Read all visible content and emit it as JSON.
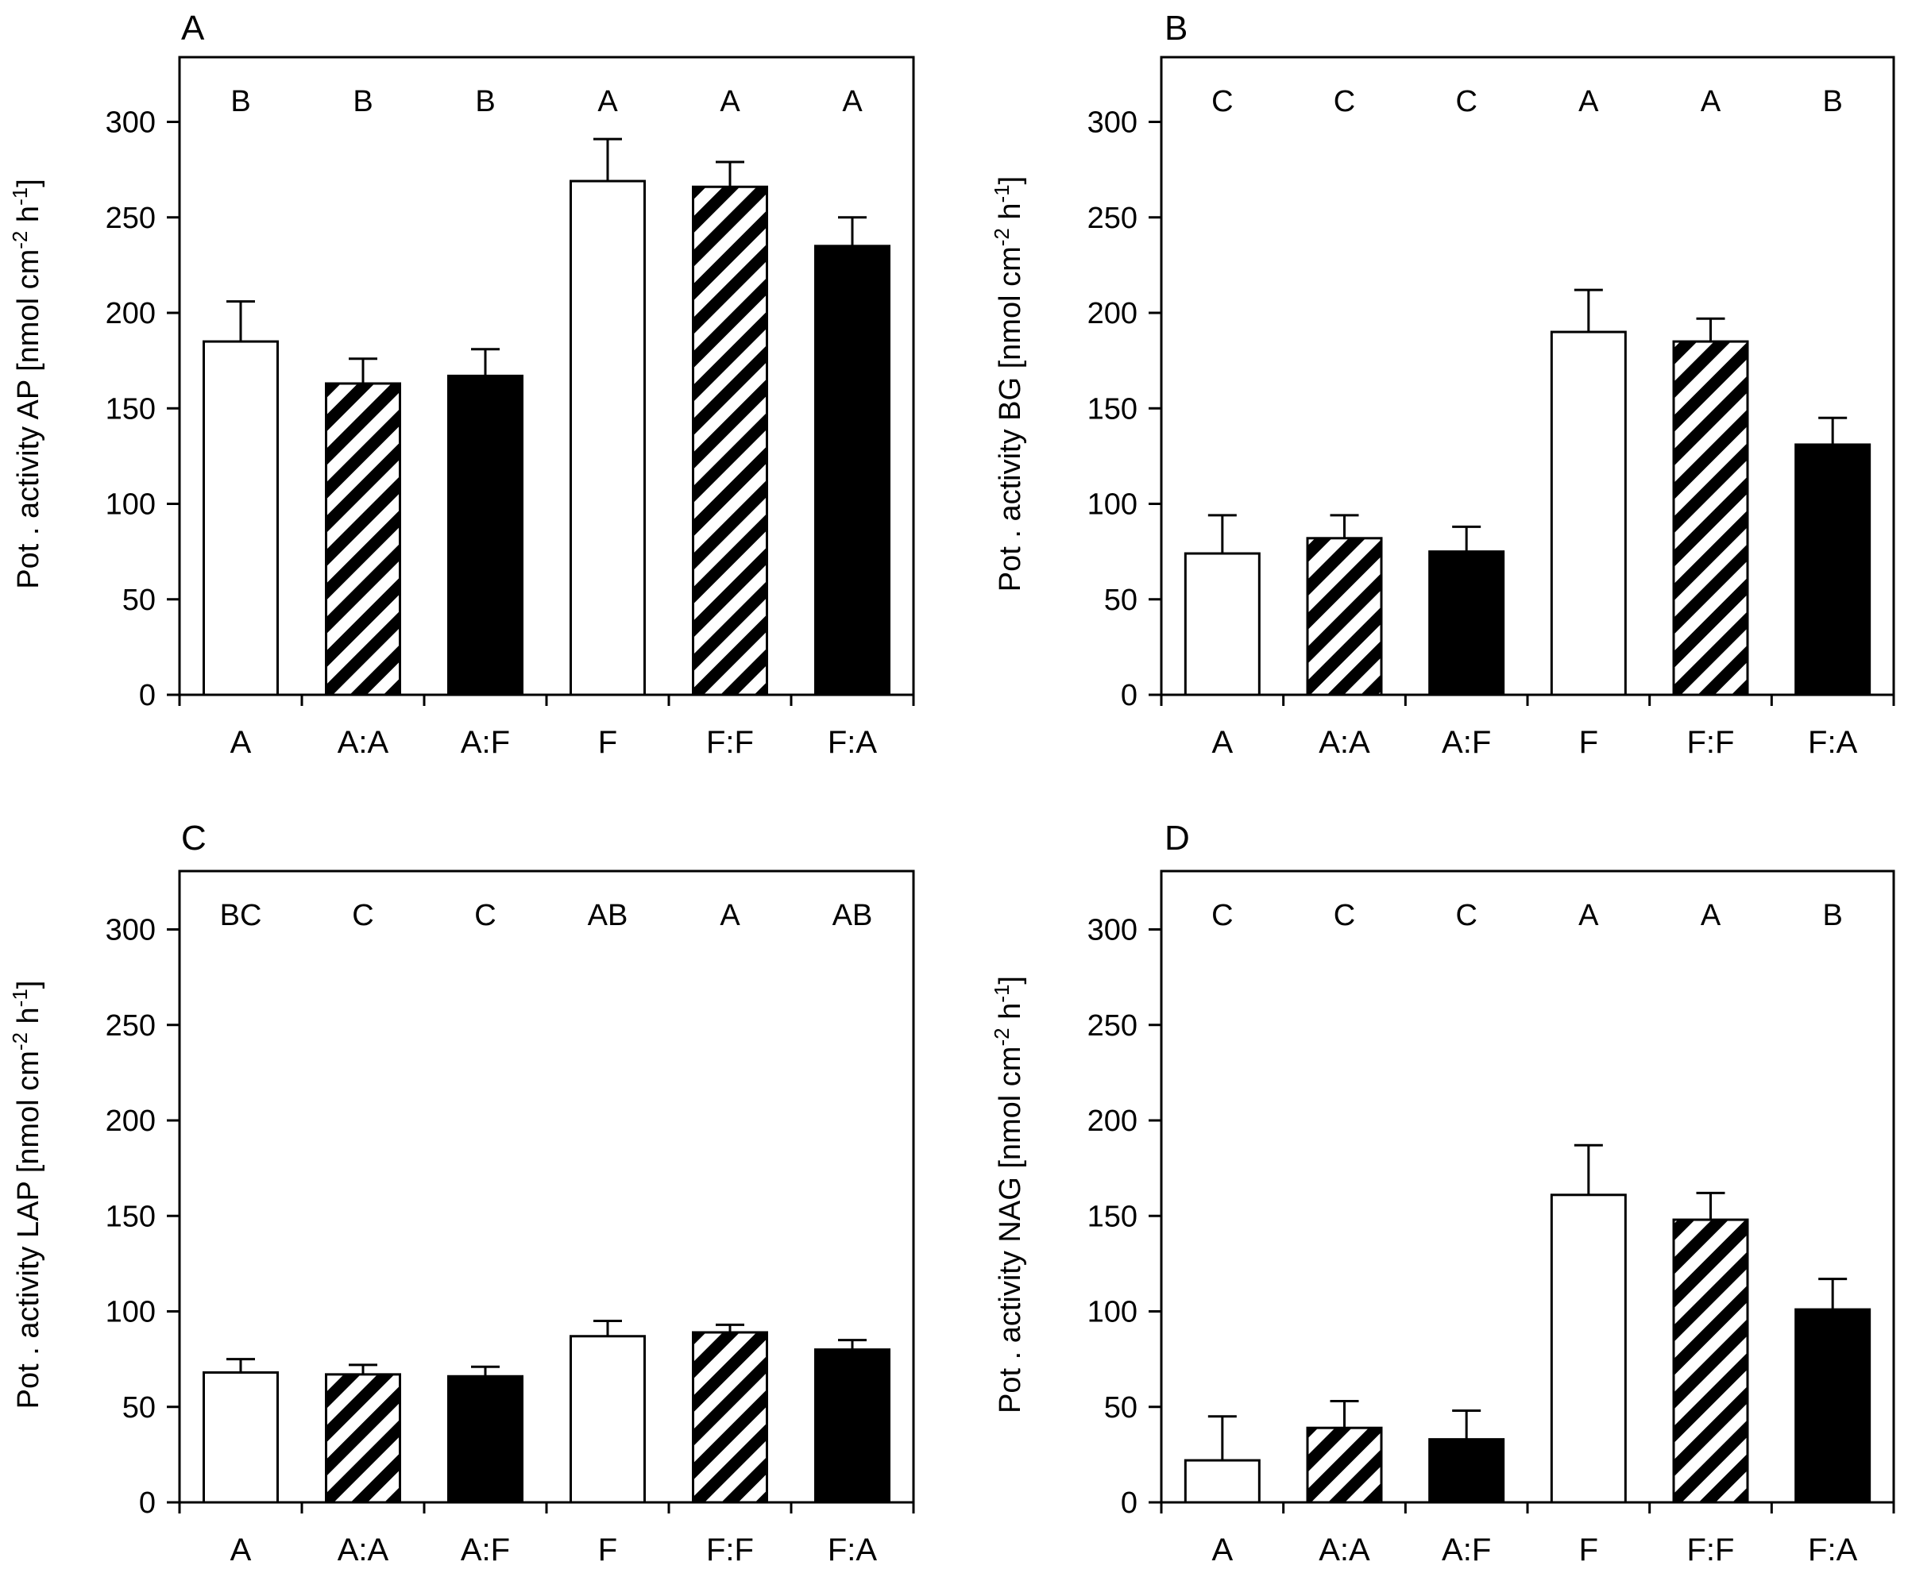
{
  "figure": {
    "background": "#ffffff",
    "bar_colors": {
      "open": "#ffffff",
      "hatched": "#000000",
      "filled": "#000000"
    }
  },
  "chart_data": [
    {
      "panel": "A",
      "type": "bar",
      "title": "A",
      "ylabel": "Pot . activity  AP [nmol cm",
      "ylabel_sup1": "-2",
      "ylabel_mid": " h",
      "ylabel_sup2": "-1",
      "ylabel_end": "]",
      "ylim": [
        0,
        320
      ],
      "yticks": [
        0,
        50,
        100,
        150,
        200,
        250,
        300
      ],
      "categories": [
        "A",
        "A:A",
        "A:F",
        "F",
        "F:F",
        "F:A"
      ],
      "patterns": [
        "open",
        "hatched",
        "filled",
        "open",
        "hatched",
        "filled"
      ],
      "values": [
        185,
        163,
        167,
        269,
        266,
        235
      ],
      "errors": [
        21,
        13,
        14,
        22,
        13,
        15
      ],
      "letters": [
        "B",
        "B",
        "B",
        "A",
        "A",
        "A"
      ]
    },
    {
      "panel": "B",
      "type": "bar",
      "title": "B",
      "ylabel": "Pot . activity  BG [nmol cm",
      "ylabel_sup1": "-2",
      "ylabel_mid": " h",
      "ylabel_sup2": "-1",
      "ylabel_end": "]",
      "ylim": [
        0,
        320
      ],
      "yticks": [
        0,
        50,
        100,
        150,
        200,
        250,
        300
      ],
      "categories": [
        "A",
        "A:A",
        "A:F",
        "F",
        "F:F",
        "F:A"
      ],
      "patterns": [
        "open",
        "hatched",
        "filled",
        "open",
        "hatched",
        "filled"
      ],
      "values": [
        74,
        82,
        75,
        190,
        185,
        131
      ],
      "errors": [
        20,
        12,
        13,
        22,
        12,
        14
      ],
      "letters": [
        "C",
        "C",
        "C",
        "A",
        "A",
        "B"
      ]
    },
    {
      "panel": "C",
      "type": "bar",
      "title": "C",
      "ylabel": "Pot . activity  LAP [nmol cm",
      "ylabel_sup1": "-2",
      "ylabel_mid": " h",
      "ylabel_sup2": "-1",
      "ylabel_end": "]",
      "ylim": [
        0,
        320
      ],
      "yticks": [
        0,
        50,
        100,
        150,
        200,
        250,
        300
      ],
      "categories": [
        "A",
        "A:A",
        "A:F",
        "F",
        "F:F",
        "F:A"
      ],
      "patterns": [
        "open",
        "hatched",
        "filled",
        "open",
        "hatched",
        "filled"
      ],
      "values": [
        68,
        67,
        66,
        87,
        89,
        80
      ],
      "errors": [
        7,
        5,
        5,
        8,
        4,
        5
      ],
      "letters": [
        "BC",
        "C",
        "C",
        "AB",
        "A",
        "AB"
      ]
    },
    {
      "panel": "D",
      "type": "bar",
      "title": "D",
      "ylabel": "Pot . activity  NAG [nmol cm",
      "ylabel_sup1": "-2",
      "ylabel_mid": " h",
      "ylabel_sup2": "-1",
      "ylabel_end": "]",
      "ylim": [
        0,
        320
      ],
      "yticks": [
        0,
        50,
        100,
        150,
        200,
        250,
        300
      ],
      "categories": [
        "A",
        "A:A",
        "A:F",
        "F",
        "F:F",
        "F:A"
      ],
      "patterns": [
        "open",
        "hatched",
        "filled",
        "open",
        "hatched",
        "filled"
      ],
      "values": [
        22,
        39,
        33,
        161,
        148,
        101
      ],
      "errors": [
        23,
        14,
        15,
        26,
        14,
        16
      ],
      "letters": [
        "C",
        "C",
        "C",
        "A",
        "A",
        "B"
      ]
    }
  ]
}
